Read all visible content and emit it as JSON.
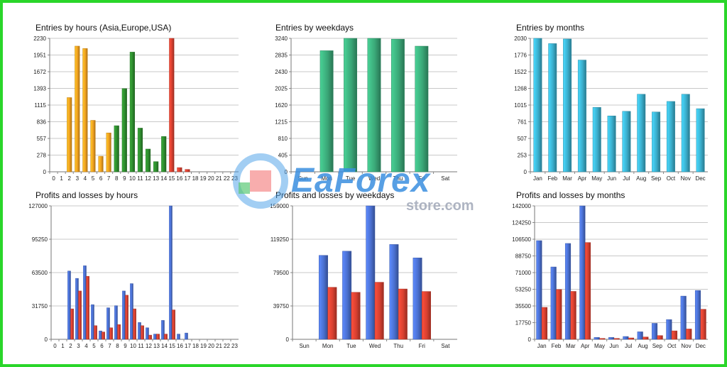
{
  "colors": {
    "orange": "#f0a020",
    "green": "#2e8b2e",
    "red": "#d84030",
    "teal": "#3aa878",
    "cyan": "#3aaecc",
    "blue": "#4a6fcf",
    "grid": "#c8c8c8",
    "border": "#2ad62a"
  },
  "watermark": {
    "brand": "EaForex",
    "site": "store.com"
  },
  "chart_data": [
    {
      "id": "entries-hours",
      "type": "bar",
      "title": "Entries by hours (Asia,Europe,USA)",
      "categories": [
        "0",
        "1",
        "2",
        "3",
        "4",
        "5",
        "6",
        "7",
        "8",
        "9",
        "10",
        "11",
        "12",
        "13",
        "14",
        "15",
        "16",
        "17",
        "18",
        "19",
        "20",
        "21",
        "22",
        "23"
      ],
      "values": [
        0,
        0,
        1240,
        2100,
        2060,
        860,
        260,
        650,
        770,
        1390,
        2000,
        730,
        380,
        170,
        590,
        2230,
        70,
        40,
        0,
        0,
        0,
        0,
        0,
        0
      ],
      "bar_colors": [
        "orange",
        "orange",
        "orange",
        "orange",
        "orange",
        "orange",
        "orange",
        "orange",
        "green",
        "green",
        "green",
        "green",
        "green",
        "green",
        "green",
        "red",
        "red",
        "red",
        "red",
        "red",
        "red",
        "red",
        "red",
        "red"
      ],
      "ylim": [
        0,
        2230
      ],
      "yticks": [
        "0",
        "278",
        "557",
        "836",
        "1115",
        "1393",
        "1672",
        "1951",
        "2230"
      ]
    },
    {
      "id": "entries-weekdays",
      "type": "bar",
      "title": "Entries by weekdays",
      "categories": [
        "Sun",
        "Mon",
        "Tue",
        "Wed",
        "Thu",
        "Fri",
        "Sat"
      ],
      "values": [
        0,
        2940,
        3240,
        3240,
        3220,
        3050,
        0
      ],
      "bar_colors": [
        "teal",
        "teal",
        "teal",
        "teal",
        "teal",
        "teal",
        "teal"
      ],
      "ylim": [
        0,
        3240
      ],
      "yticks": [
        "0",
        "405",
        "810",
        "1215",
        "1620",
        "2025",
        "2430",
        "2835",
        "3240"
      ]
    },
    {
      "id": "entries-months",
      "type": "bar",
      "title": "Entries by months",
      "categories": [
        "Jan",
        "Feb",
        "Mar",
        "Apr",
        "May",
        "Jun",
        "Jul",
        "Aug",
        "Sep",
        "Oct",
        "Nov",
        "Dec"
      ],
      "values": [
        2030,
        1950,
        2020,
        1700,
        980,
        850,
        920,
        1180,
        910,
        1070,
        1180,
        960
      ],
      "bar_colors": [
        "cyan",
        "cyan",
        "cyan",
        "cyan",
        "cyan",
        "cyan",
        "cyan",
        "cyan",
        "cyan",
        "cyan",
        "cyan",
        "cyan"
      ],
      "ylim": [
        0,
        2030
      ],
      "yticks": [
        "0",
        "253",
        "507",
        "761",
        "1015",
        "1268",
        "1522",
        "1776",
        "2030"
      ]
    },
    {
      "id": "pl-hours",
      "type": "bar",
      "title": "Profits and losses by hours",
      "categories": [
        "0",
        "1",
        "2",
        "3",
        "4",
        "5",
        "6",
        "7",
        "8",
        "9",
        "10",
        "11",
        "12",
        "13",
        "14",
        "15",
        "16",
        "17",
        "18",
        "19",
        "20",
        "21",
        "22",
        "23"
      ],
      "series": [
        {
          "color": "blue",
          "values": [
            0,
            0,
            65000,
            58000,
            70000,
            33000,
            8000,
            30000,
            32000,
            46000,
            53000,
            16000,
            11000,
            5000,
            18000,
            127000,
            5000,
            6000,
            0,
            0,
            0,
            0,
            0,
            0
          ]
        },
        {
          "color": "red",
          "values": [
            0,
            0,
            29000,
            46000,
            60000,
            13000,
            7000,
            11000,
            14000,
            42000,
            29000,
            13000,
            4000,
            5000,
            5000,
            28000,
            0,
            0,
            0,
            0,
            0,
            0,
            0,
            0
          ]
        }
      ],
      "ylim": [
        0,
        127000
      ],
      "yticks": [
        "0",
        "31750",
        "63500",
        "95250",
        "127000"
      ]
    },
    {
      "id": "pl-weekdays",
      "type": "bar",
      "title": "Profits and losses by weekdays",
      "categories": [
        "Sun",
        "Mon",
        "Tue",
        "Wed",
        "Thu",
        "Fri",
        "Sat"
      ],
      "series": [
        {
          "color": "blue",
          "values": [
            0,
            100000,
            105000,
            159000,
            113000,
            97000,
            0
          ]
        },
        {
          "color": "red",
          "values": [
            0,
            62000,
            56000,
            68000,
            60000,
            57000,
            0
          ]
        }
      ],
      "ylim": [
        0,
        159000
      ],
      "yticks": [
        "0",
        "39750",
        "79500",
        "119250",
        "159000"
      ]
    },
    {
      "id": "pl-months",
      "type": "bar",
      "title": "Profits and losses by months",
      "categories": [
        "Jan",
        "Feb",
        "Mar",
        "Apr",
        "May",
        "Jun",
        "Jul",
        "Aug",
        "Sep",
        "Oct",
        "Nov",
        "Dec"
      ],
      "series": [
        {
          "color": "blue",
          "values": [
            105000,
            77000,
            102000,
            142000,
            2000,
            2000,
            3000,
            8000,
            17000,
            21000,
            46000,
            52000
          ]
        },
        {
          "color": "red",
          "values": [
            34000,
            53000,
            51000,
            103000,
            1000,
            1000,
            1500,
            2500,
            4000,
            9000,
            11000,
            32000
          ]
        }
      ],
      "ylim": [
        0,
        142000
      ],
      "yticks": [
        "0",
        "17750",
        "35500",
        "53250",
        "71000",
        "88750",
        "106500",
        "124250",
        "142000"
      ]
    }
  ]
}
